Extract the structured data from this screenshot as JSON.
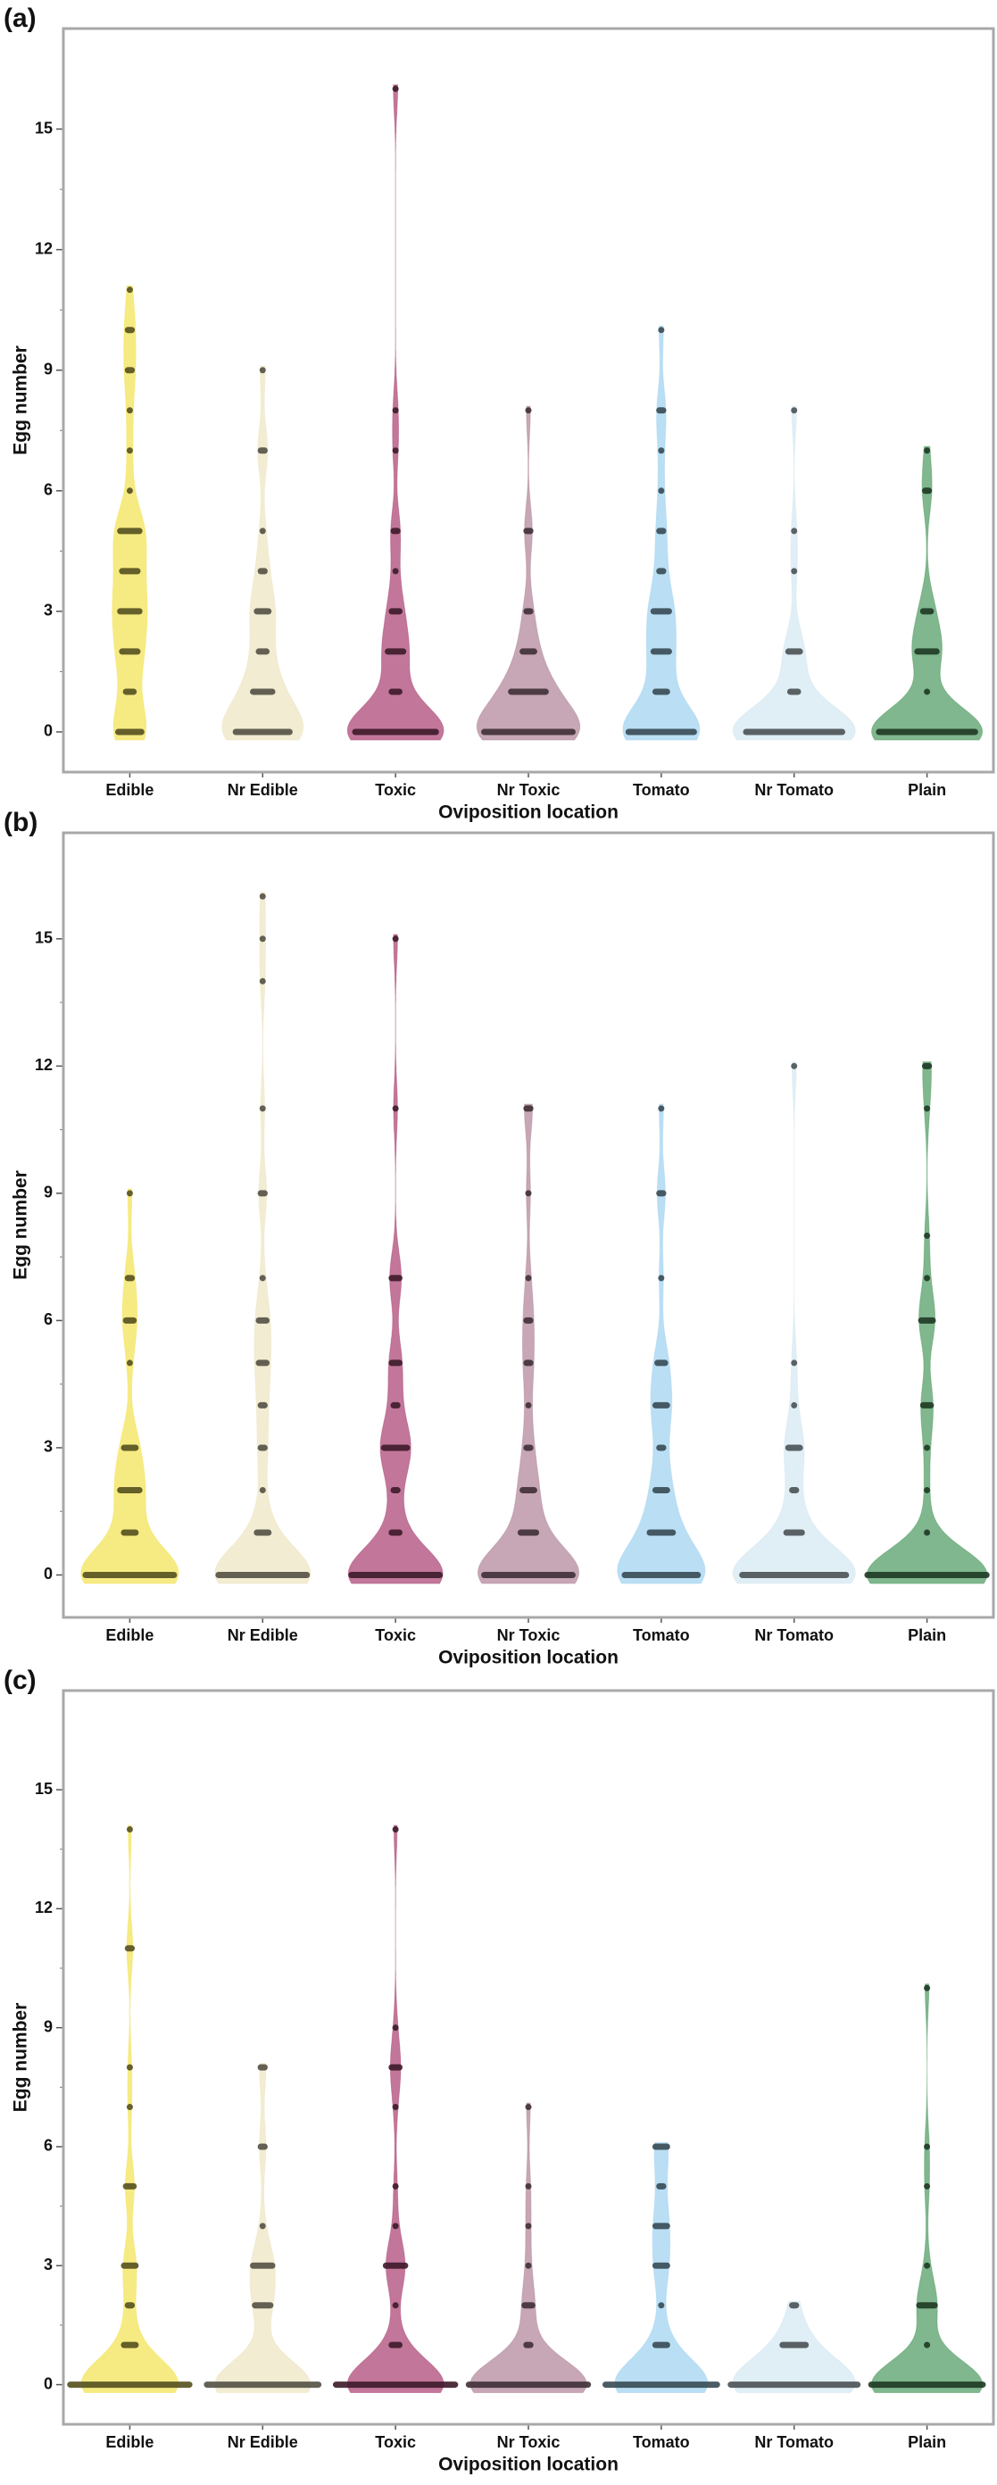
{
  "chart_data": [
    {
      "type": "violin",
      "panel_label": "(a)",
      "x_label": "Oviposition location",
      "y_label": "Egg number",
      "categories": [
        "Edible",
        "Nr Edible",
        "Toxic",
        "Nr Toxic",
        "Tomato",
        "Nr Tomato",
        "Plain"
      ],
      "colors": [
        "#f3e45a",
        "#ede6c4",
        "#ad4a78",
        "#b48a9c",
        "#a3d4f0",
        "#d5e8f2",
        "#559f68"
      ],
      "values": [
        [
          0,
          1,
          2,
          3,
          4,
          5,
          6,
          7,
          8,
          9,
          10,
          11
        ],
        [
          0,
          1,
          2,
          3,
          4,
          5,
          7,
          9
        ],
        [
          0,
          1,
          2,
          3,
          4,
          5,
          7,
          8,
          16
        ],
        [
          0,
          1,
          2,
          3,
          5,
          8
        ],
        [
          0,
          1,
          2,
          3,
          4,
          5,
          6,
          7,
          8,
          10
        ],
        [
          0,
          1,
          2,
          4,
          5,
          8
        ],
        [
          0,
          1,
          2,
          3,
          6,
          7
        ]
      ],
      "counts": [
        [
          7,
          3,
          5,
          6,
          5,
          6,
          1,
          1,
          1,
          2,
          2,
          1
        ],
        [
          15,
          6,
          3,
          4,
          2,
          1,
          2,
          1
        ],
        [
          22,
          3,
          5,
          3,
          1,
          2,
          1,
          1,
          1
        ],
        [
          24,
          10,
          4,
          2,
          2,
          1
        ],
        [
          18,
          4,
          5,
          5,
          2,
          2,
          1,
          1,
          2,
          1
        ],
        [
          26,
          3,
          4,
          1,
          1,
          1
        ],
        [
          26,
          1,
          6,
          3,
          2,
          1
        ]
      ],
      "ylim": [
        -1,
        17.5
      ],
      "yticks": [
        0,
        3,
        6,
        9,
        12,
        15
      ]
    },
    {
      "type": "violin",
      "panel_label": "(b)",
      "x_label": "Oviposition location",
      "y_label": "Egg number",
      "categories": [
        "Edible",
        "Nr Edible",
        "Toxic",
        "Nr Toxic",
        "Tomato",
        "Nr Tomato",
        "Plain"
      ],
      "colors": [
        "#f3e45a",
        "#ede6c4",
        "#ad4a78",
        "#b48a9c",
        "#a3d4f0",
        "#d5e8f2",
        "#559f68"
      ],
      "values": [
        [
          0,
          1,
          2,
          3,
          5,
          6,
          7,
          9
        ],
        [
          0,
          1,
          2,
          3,
          4,
          5,
          6,
          7,
          9,
          11,
          14,
          15,
          16
        ],
        [
          0,
          1,
          2,
          3,
          4,
          5,
          7,
          11,
          15
        ],
        [
          0,
          1,
          2,
          3,
          4,
          5,
          6,
          7,
          9,
          11
        ],
        [
          0,
          1,
          2,
          3,
          4,
          5,
          7,
          9,
          11
        ],
        [
          0,
          1,
          2,
          3,
          4,
          5,
          12
        ],
        [
          0,
          1,
          2,
          3,
          4,
          6,
          7,
          8,
          11,
          12
        ]
      ],
      "counts": [
        [
          24,
          4,
          6,
          4,
          1,
          3,
          2,
          1
        ],
        [
          24,
          4,
          1,
          2,
          2,
          3,
          3,
          1,
          2,
          1,
          1,
          1,
          1
        ],
        [
          24,
          3,
          2,
          7,
          2,
          3,
          3,
          1,
          1
        ],
        [
          24,
          5,
          4,
          2,
          1,
          2,
          2,
          1,
          1,
          2
        ],
        [
          20,
          7,
          4,
          2,
          4,
          3,
          1,
          2,
          1
        ],
        [
          28,
          5,
          2,
          4,
          1,
          1,
          1
        ],
        [
          32,
          1,
          1,
          1,
          3,
          4,
          1,
          1,
          1,
          2
        ]
      ],
      "ylim": [
        -1,
        17.5
      ],
      "yticks": [
        0,
        3,
        6,
        9,
        12,
        15
      ]
    },
    {
      "type": "violin",
      "panel_label": "(c)",
      "x_label": "Oviposition location",
      "y_label": "Egg number",
      "categories": [
        "Edible",
        "Nr Edible",
        "Toxic",
        "Nr Toxic",
        "Tomato",
        "Nr Tomato",
        "Plain"
      ],
      "colors": [
        "#f3e45a",
        "#ede6c4",
        "#ad4a78",
        "#b48a9c",
        "#a3d4f0",
        "#d5e8f2",
        "#559f68"
      ],
      "values": [
        [
          0,
          1,
          2,
          3,
          5,
          7,
          8,
          11,
          14
        ],
        [
          0,
          2,
          3,
          4,
          6,
          8
        ],
        [
          0,
          1,
          2,
          3,
          4,
          5,
          7,
          8,
          9,
          14
        ],
        [
          0,
          1,
          2,
          3,
          4,
          5,
          7
        ],
        [
          0,
          1,
          2,
          3,
          4,
          5,
          6
        ],
        [
          0,
          1,
          2
        ],
        [
          0,
          1,
          2,
          3,
          5,
          6,
          10
        ]
      ],
      "counts": [
        [
          32,
          4,
          2,
          4,
          3,
          1,
          1,
          2,
          1
        ],
        [
          30,
          5,
          6,
          1,
          2,
          2
        ],
        [
          32,
          3,
          1,
          6,
          1,
          1,
          1,
          3,
          1,
          1
        ],
        [
          32,
          2,
          3,
          1,
          1,
          1,
          1
        ],
        [
          30,
          4,
          1,
          4,
          4,
          2,
          4
        ],
        [
          34,
          7,
          2
        ],
        [
          30,
          1,
          5,
          1,
          1,
          1,
          1
        ]
      ],
      "ylim": [
        -1,
        17.5
      ],
      "yticks": [
        0,
        3,
        6,
        9,
        12,
        15
      ]
    }
  ]
}
